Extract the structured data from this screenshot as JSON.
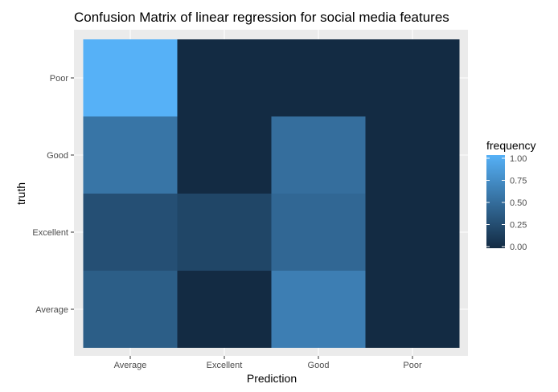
{
  "chart_data": {
    "type": "heatmap",
    "title": "Confusion Matrix of  linear regression for social media features",
    "xlabel": "Prediction",
    "ylabel": "truth",
    "x_categories": [
      "Average",
      "Excellent",
      "Good",
      "Poor"
    ],
    "y_categories": [
      "Average",
      "Excellent",
      "Good",
      "Poor"
    ],
    "cells": [
      {
        "x": "Average",
        "y": "Average",
        "value": 0.38
      },
      {
        "x": "Excellent",
        "y": "Average",
        "value": 0.0
      },
      {
        "x": "Good",
        "y": "Average",
        "value": 0.62
      },
      {
        "x": "Poor",
        "y": "Average",
        "value": 0.0
      },
      {
        "x": "Average",
        "y": "Excellent",
        "value": 0.27
      },
      {
        "x": "Excellent",
        "y": "Excellent",
        "value": 0.2
      },
      {
        "x": "Good",
        "y": "Excellent",
        "value": 0.45
      },
      {
        "x": "Poor",
        "y": "Excellent",
        "value": 0.0
      },
      {
        "x": "Average",
        "y": "Good",
        "value": 0.55
      },
      {
        "x": "Excellent",
        "y": "Good",
        "value": 0.0
      },
      {
        "x": "Good",
        "y": "Good",
        "value": 0.5
      },
      {
        "x": "Poor",
        "y": "Good",
        "value": 0.0
      },
      {
        "x": "Average",
        "y": "Poor",
        "value": 1.0
      },
      {
        "x": "Excellent",
        "y": "Poor",
        "value": 0.0
      },
      {
        "x": "Good",
        "y": "Poor",
        "value": 0.0
      },
      {
        "x": "Poor",
        "y": "Poor",
        "value": 0.0
      }
    ],
    "legend": {
      "title": "frequency",
      "placement": "right",
      "ticks": [
        0.0,
        0.25,
        0.5,
        0.75,
        1.0
      ],
      "tick_labels": [
        "0.00",
        "0.25",
        "0.50",
        "0.75",
        "1.00"
      ],
      "low_color": "#132B43",
      "high_color": "#56B1F7"
    },
    "panel_background": "#EBEBEB",
    "grid": true
  }
}
